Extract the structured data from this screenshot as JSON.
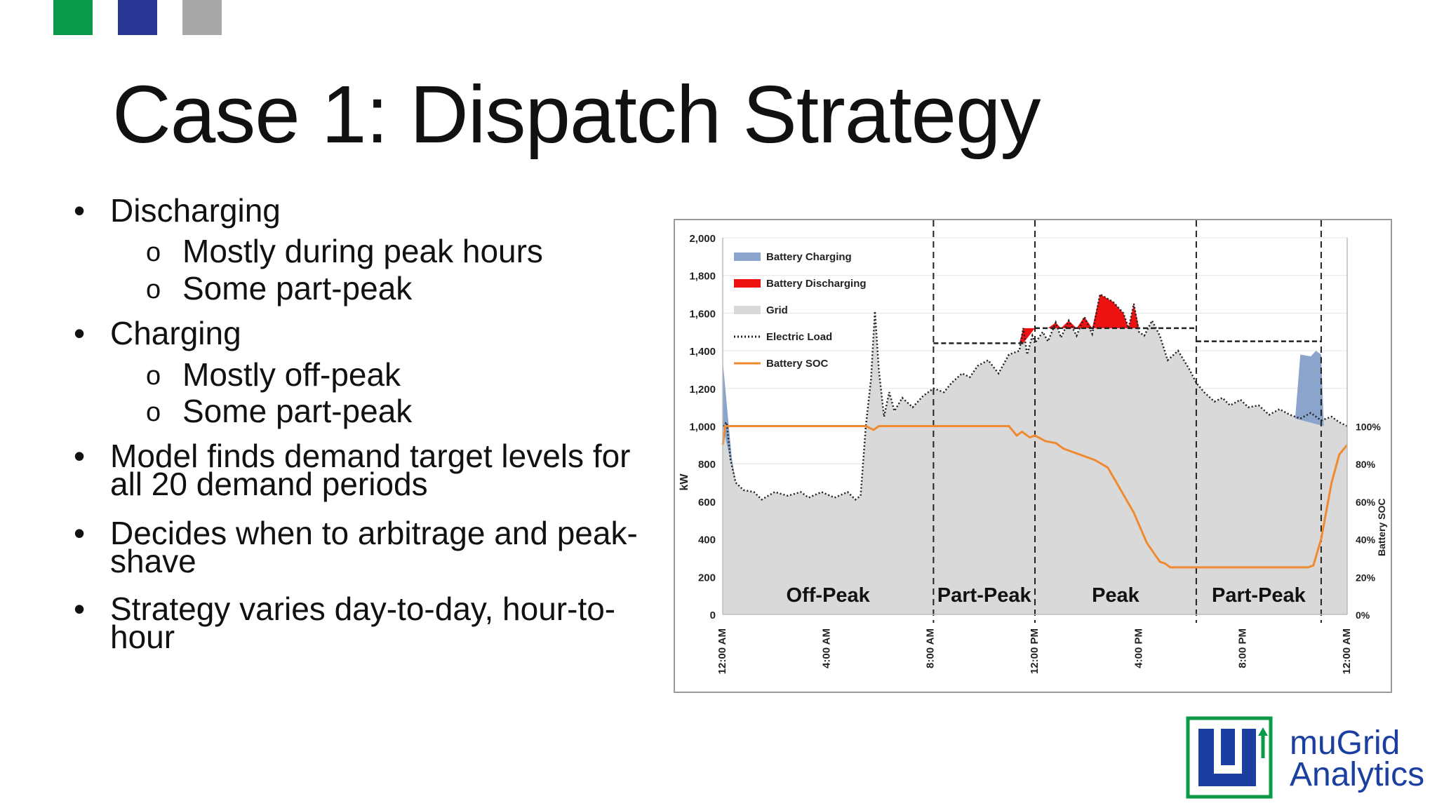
{
  "header_squares": [
    {
      "name": "green-square",
      "color": "#0a9a4a"
    },
    {
      "name": "blue-square",
      "color": "#283593"
    },
    {
      "name": "gray-square",
      "color": "#a8a8a8"
    }
  ],
  "title": "Case 1: Dispatch Strategy",
  "bullets": [
    {
      "text": "Discharging",
      "sub": [
        "Mostly during peak hours",
        "Some part-peak"
      ]
    },
    {
      "text": "Charging",
      "sub": [
        "Mostly off-peak",
        "Some part-peak"
      ]
    },
    {
      "text": "Model finds demand target levels for all 20 demand periods",
      "sub": []
    },
    {
      "text": "Decides when to arbitrage and peak-shave",
      "sub": []
    },
    {
      "text": "Strategy varies day-to-day, hour-to-hour",
      "sub": []
    }
  ],
  "bullet_symbol": "•",
  "sub_bullet_symbol": "o",
  "logo": {
    "line1": "muGrid",
    "line2": "Analytics",
    "color": "#1a3fa0",
    "accent": "#0a9a4a"
  },
  "chart_data": {
    "type": "area",
    "ylabel": "kW",
    "y2label": "Battery SOC",
    "ylim": [
      0,
      2000
    ],
    "y_ticks": [
      "0",
      "200",
      "400",
      "600",
      "800",
      "1,000",
      "1,200",
      "1,400",
      "1,600",
      "1,800",
      "2,000"
    ],
    "y2_ticks": [
      "0%",
      "20%",
      "40%",
      "60%",
      "80%",
      "100%"
    ],
    "x_ticks": [
      {
        "hour": 0,
        "label": "12:00 AM"
      },
      {
        "hour": 4,
        "label": "4:00 AM"
      },
      {
        "hour": 8,
        "label": "8:00 AM"
      },
      {
        "hour": 12,
        "label": "12:00 PM"
      },
      {
        "hour": 16,
        "label": "4:00 PM"
      },
      {
        "hour": 20,
        "label": "8:00 PM"
      },
      {
        "hour": 24,
        "label": "12:00 AM"
      }
    ],
    "grid": true,
    "legend_position": "top-left",
    "series": [
      {
        "name": "Battery Charging",
        "color": "#8aa4cc"
      },
      {
        "name": "Battery Discharging",
        "color": "#ee1111"
      },
      {
        "name": "Grid",
        "color": "#d9d9d9"
      },
      {
        "name": "Electric Load",
        "color": "#222222"
      },
      {
        "name": "Battery SOC",
        "color": "#f08a30"
      }
    ],
    "periods": [
      {
        "label": "Off-Peak",
        "start": 0,
        "end": 8.1
      },
      {
        "label": "Part-Peak",
        "start": 8.1,
        "end": 12.0
      },
      {
        "label": "Peak",
        "start": 12.0,
        "end": 18.2
      },
      {
        "label": "Part-Peak",
        "start": 18.2,
        "end": 23.0
      }
    ],
    "period_boundaries": [
      8.1,
      12.0,
      18.2,
      23.0
    ],
    "demand_targets": [
      {
        "start": 8.1,
        "end": 11.6,
        "value": 1440
      },
      {
        "start": 12.0,
        "end": 18.2,
        "value": 1520
      },
      {
        "start": 18.2,
        "end": 23.0,
        "value": 1450
      }
    ],
    "load": [
      [
        0,
        1000
      ],
      [
        0.15,
        1020
      ],
      [
        0.3,
        820
      ],
      [
        0.5,
        700
      ],
      [
        0.8,
        660
      ],
      [
        1.2,
        650
      ],
      [
        1.5,
        610
      ],
      [
        2,
        650
      ],
      [
        2.5,
        630
      ],
      [
        3,
        650
      ],
      [
        3.3,
        620
      ],
      [
        3.8,
        650
      ],
      [
        4.3,
        620
      ],
      [
        4.8,
        650
      ],
      [
        5.1,
        610
      ],
      [
        5.3,
        630
      ],
      [
        5.5,
        1000
      ],
      [
        5.7,
        1250
      ],
      [
        5.85,
        1610
      ],
      [
        6.0,
        1300
      ],
      [
        6.2,
        1050
      ],
      [
        6.4,
        1180
      ],
      [
        6.6,
        1080
      ],
      [
        6.9,
        1150
      ],
      [
        7.3,
        1100
      ],
      [
        7.7,
        1160
      ],
      [
        8.1,
        1200
      ],
      [
        8.5,
        1180
      ],
      [
        8.8,
        1230
      ],
      [
        9.2,
        1280
      ],
      [
        9.5,
        1260
      ],
      [
        9.8,
        1320
      ],
      [
        10.2,
        1350
      ],
      [
        10.6,
        1280
      ],
      [
        11.0,
        1380
      ],
      [
        11.4,
        1400
      ],
      [
        11.55,
        1520
      ],
      [
        11.7,
        1380
      ],
      [
        11.9,
        1480
      ],
      [
        12.0,
        1440
      ],
      [
        12.3,
        1500
      ],
      [
        12.5,
        1450
      ],
      [
        12.8,
        1550
      ],
      [
        13.0,
        1470
      ],
      [
        13.3,
        1560
      ],
      [
        13.6,
        1480
      ],
      [
        13.9,
        1580
      ],
      [
        14.2,
        1490
      ],
      [
        14.5,
        1700
      ],
      [
        15.0,
        1660
      ],
      [
        15.4,
        1600
      ],
      [
        15.6,
        1520
      ],
      [
        15.8,
        1650
      ],
      [
        16.0,
        1500
      ],
      [
        16.2,
        1480
      ],
      [
        16.5,
        1560
      ],
      [
        16.8,
        1480
      ],
      [
        17.1,
        1350
      ],
      [
        17.5,
        1400
      ],
      [
        17.9,
        1310
      ],
      [
        18.2,
        1230
      ],
      [
        18.5,
        1180
      ],
      [
        18.9,
        1130
      ],
      [
        19.2,
        1150
      ],
      [
        19.5,
        1110
      ],
      [
        19.9,
        1140
      ],
      [
        20.2,
        1100
      ],
      [
        20.6,
        1110
      ],
      [
        21.0,
        1060
      ],
      [
        21.4,
        1090
      ],
      [
        21.8,
        1060
      ],
      [
        22.2,
        1040
      ],
      [
        22.6,
        1070
      ],
      [
        23.0,
        1030
      ],
      [
        23.4,
        1050
      ],
      [
        23.7,
        1020
      ],
      [
        24,
        1000
      ]
    ],
    "battery_charging": [
      [
        0,
        1350
      ],
      [
        0.2,
        1050
      ],
      [
        0.35,
        830
      ],
      [
        0.5,
        700
      ],
      [
        22.0,
        1040
      ],
      [
        22.2,
        1380
      ],
      [
        22.6,
        1370
      ],
      [
        22.8,
        1400
      ],
      [
        23.0,
        1380
      ],
      [
        23.1,
        1000
      ]
    ],
    "battery_soc_pct": [
      [
        0,
        90
      ],
      [
        0.1,
        100
      ],
      [
        5.5,
        100
      ],
      [
        5.8,
        98
      ],
      [
        6.0,
        100
      ],
      [
        11.0,
        100
      ],
      [
        11.3,
        95
      ],
      [
        11.5,
        97
      ],
      [
        11.8,
        94
      ],
      [
        12.0,
        95
      ],
      [
        12.4,
        92
      ],
      [
        12.8,
        91
      ],
      [
        13.1,
        88
      ],
      [
        13.5,
        86
      ],
      [
        13.9,
        84
      ],
      [
        14.3,
        82
      ],
      [
        14.8,
        78
      ],
      [
        15.3,
        66
      ],
      [
        15.8,
        54
      ],
      [
        16.3,
        38
      ],
      [
        16.6,
        32
      ],
      [
        16.8,
        28
      ],
      [
        17.0,
        27
      ],
      [
        17.2,
        25
      ],
      [
        17.4,
        25
      ],
      [
        18,
        25
      ],
      [
        20,
        25
      ],
      [
        22.5,
        25
      ],
      [
        22.7,
        26
      ],
      [
        23.0,
        40
      ],
      [
        23.4,
        70
      ],
      [
        23.7,
        85
      ],
      [
        24,
        90
      ]
    ]
  }
}
